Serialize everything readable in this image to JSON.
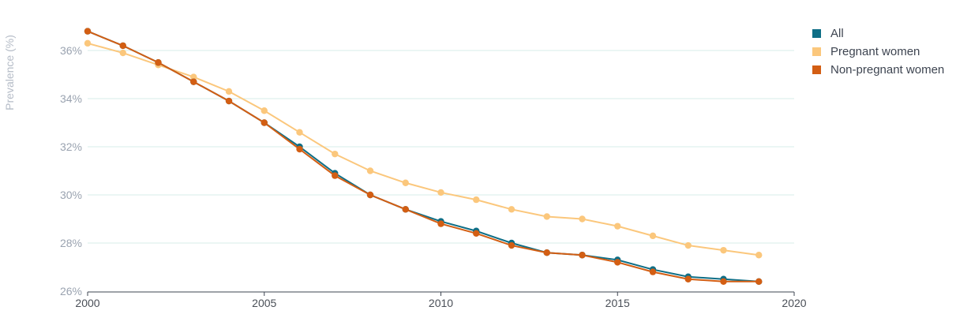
{
  "chart_data": {
    "type": "line",
    "title": "",
    "xlabel": "",
    "ylabel": "Prevalence (%)",
    "xlim": [
      2000,
      2020
    ],
    "ylim": [
      26,
      37
    ],
    "x_ticks": [
      2000,
      2005,
      2010,
      2015,
      2020
    ],
    "y_ticks": [
      26,
      28,
      30,
      32,
      34,
      36
    ],
    "y_tick_labels": [
      "26%",
      "28%",
      "30%",
      "32%",
      "34%",
      "36%"
    ],
    "grid": "horizontal",
    "legend_position": "top-right",
    "x": [
      2000,
      2001,
      2002,
      2003,
      2004,
      2005,
      2006,
      2007,
      2008,
      2009,
      2010,
      2011,
      2012,
      2013,
      2014,
      2015,
      2016,
      2017,
      2018,
      2019
    ],
    "series": [
      {
        "name": "All",
        "color": "#0e6e86",
        "values": [
          36.8,
          36.2,
          35.5,
          34.7,
          33.9,
          33.0,
          32.0,
          30.9,
          30.0,
          29.4,
          28.9,
          28.5,
          28.0,
          27.6,
          27.5,
          27.3,
          26.9,
          26.6,
          26.5,
          26.4
        ]
      },
      {
        "name": "Pregnant women",
        "color": "#fbc77c",
        "values": [
          36.3,
          35.9,
          35.4,
          34.9,
          34.3,
          33.5,
          32.6,
          31.7,
          31.0,
          30.5,
          30.1,
          29.8,
          29.4,
          29.1,
          29.0,
          28.7,
          28.3,
          27.9,
          27.7,
          27.5
        ]
      },
      {
        "name": "Non-pregnant women",
        "color": "#d35e13",
        "values": [
          36.8,
          36.2,
          35.5,
          34.7,
          33.9,
          33.0,
          31.9,
          30.8,
          30.0,
          29.4,
          28.8,
          28.4,
          27.9,
          27.6,
          27.5,
          27.2,
          26.8,
          26.5,
          26.4,
          26.4
        ]
      }
    ]
  }
}
